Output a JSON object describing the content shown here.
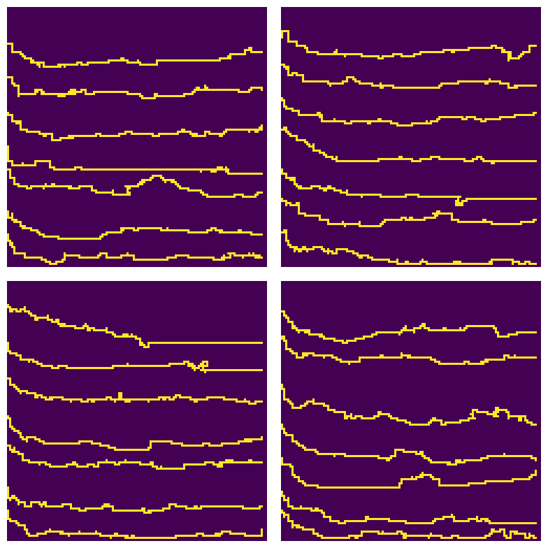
{
  "colors": {
    "background": "#440154",
    "path": "#fde725",
    "figure": "#ffffff"
  },
  "panels": [
    {
      "name": "top-left",
      "paths": [
        {
          "y0": 0.14,
          "drift": -0.1,
          "blob": 0.9,
          "seed": 11
        },
        {
          "y0": 0.27,
          "drift": -0.08,
          "blob": 0.2,
          "seed": 12
        },
        {
          "y0": 0.4,
          "drift": -0.04,
          "blob": 0.74,
          "seed": 13
        },
        {
          "y0": 0.53,
          "drift": -0.12,
          "blob": 0.8,
          "seed": 14
        },
        {
          "y0": 0.62,
          "drift": -0.02,
          "blob": 0.52,
          "seed": 15
        },
        {
          "y0": 0.78,
          "drift": -0.04,
          "blob": 0.8,
          "seed": 16
        },
        {
          "y0": 0.88,
          "drift": -0.03,
          "blob": 0.82,
          "seed": 17
        }
      ]
    },
    {
      "name": "top-right",
      "paths": [
        {
          "y0": 0.09,
          "drift": -0.06,
          "blob": 0.9,
          "seed": 21
        },
        {
          "y0": 0.22,
          "drift": -0.09,
          "blob": 0.85,
          "seed": 22
        },
        {
          "y0": 0.35,
          "drift": -0.06,
          "blob": 0.6,
          "seed": 23
        },
        {
          "y0": 0.47,
          "drift": -0.01,
          "blob": 0.75,
          "seed": 24
        },
        {
          "y0": 0.62,
          "drift": -0.04,
          "blob": 0.7,
          "seed": 25
        },
        {
          "y0": 0.73,
          "drift": -0.02,
          "blob": 0.55,
          "seed": 26
        },
        {
          "y0": 0.86,
          "drift": 0.05,
          "blob": 0.82,
          "seed": 27
        }
      ]
    },
    {
      "name": "bottom-left",
      "paths": [
        {
          "y0": 0.1,
          "drift": -0.02,
          "blob": 0.5,
          "seed": 31
        },
        {
          "y0": 0.23,
          "drift": -0.08,
          "blob": 0.75,
          "seed": 32
        },
        {
          "y0": 0.37,
          "drift": -0.02,
          "blob": 0.48,
          "seed": 33
        },
        {
          "y0": 0.52,
          "drift": 0.0,
          "blob": 0.88,
          "seed": 34
        },
        {
          "y0": 0.63,
          "drift": -0.05,
          "blob": 0.85,
          "seed": 35
        },
        {
          "y0": 0.79,
          "drift": -0.05,
          "blob": 0.6,
          "seed": 36
        },
        {
          "y0": 0.88,
          "drift": -0.02,
          "blob": 0.8,
          "seed": 37
        }
      ]
    },
    {
      "name": "bottom-right",
      "paths": [
        {
          "y0": 0.11,
          "drift": -0.02,
          "blob": 0.75,
          "seed": 41
        },
        {
          "y0": 0.21,
          "drift": -0.03,
          "blob": 0.8,
          "seed": 42
        },
        {
          "y0": 0.4,
          "drift": 0.05,
          "blob": 0.78,
          "seed": 43
        },
        {
          "y0": 0.55,
          "drift": 0.04,
          "blob": 0.68,
          "seed": 44
        },
        {
          "y0": 0.68,
          "drift": -0.05,
          "blob": 0.58,
          "seed": 45
        },
        {
          "y0": 0.81,
          "drift": -0.02,
          "blob": 0.8,
          "seed": 46
        },
        {
          "y0": 0.88,
          "drift": 0.02,
          "blob": 0.5,
          "seed": 47
        }
      ]
    }
  ]
}
